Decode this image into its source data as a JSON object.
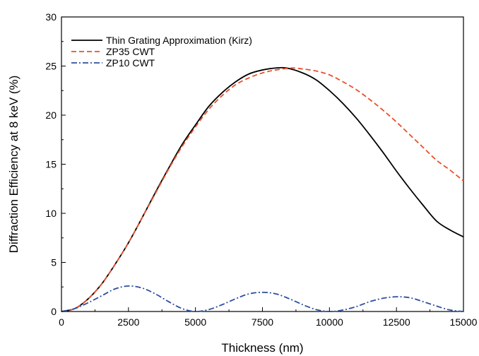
{
  "chart_data": {
    "type": "line",
    "title": "",
    "xlabel": "Thickness (nm)",
    "ylabel": "Diffraction Efficiency at 8 keV (%)",
    "xlim": [
      0,
      15000
    ],
    "ylim": [
      0,
      30
    ],
    "xticks": [
      0,
      2500,
      5000,
      7500,
      10000,
      12500,
      15000
    ],
    "yticks": [
      0,
      5,
      10,
      15,
      20,
      25,
      30
    ],
    "grid": false,
    "legend_position": "top-left",
    "series": [
      {
        "name": "Thin Grating Approximation (Kirz)",
        "color": "#000000",
        "style": "solid",
        "x": [
          0,
          500,
          1000,
          1500,
          2000,
          2500,
          3000,
          3500,
          4000,
          4500,
          5000,
          5500,
          6000,
          6500,
          7000,
          7500,
          8000,
          8400,
          9000,
          9500,
          10000,
          10500,
          11000,
          11500,
          12000,
          12500,
          13000,
          13500,
          14000,
          14500,
          15000
        ],
        "y": [
          0,
          0.3,
          1.3,
          2.8,
          4.8,
          7.0,
          9.5,
          12.1,
          14.6,
          17.0,
          19.0,
          20.9,
          22.3,
          23.4,
          24.2,
          24.6,
          24.8,
          24.8,
          24.3,
          23.6,
          22.5,
          21.2,
          19.7,
          18.0,
          16.2,
          14.3,
          12.5,
          10.8,
          9.2,
          8.3,
          7.6
        ]
      },
      {
        "name": "ZP35 CWT",
        "color": "#e8502a",
        "style": "dashed",
        "x": [
          0,
          500,
          1000,
          1500,
          2000,
          2500,
          3000,
          3500,
          4000,
          4500,
          5000,
          5500,
          6000,
          6500,
          7000,
          7500,
          8000,
          8600,
          9000,
          9500,
          10000,
          10500,
          11000,
          11500,
          12000,
          12500,
          13000,
          13500,
          14000,
          14500,
          15000
        ],
        "y": [
          0,
          0.3,
          1.3,
          2.8,
          4.8,
          7.0,
          9.5,
          12.0,
          14.5,
          16.8,
          18.8,
          20.6,
          22.0,
          23.1,
          23.8,
          24.3,
          24.6,
          24.8,
          24.7,
          24.5,
          24.1,
          23.4,
          22.6,
          21.6,
          20.5,
          19.3,
          18.0,
          16.7,
          15.4,
          14.4,
          13.3
        ]
      },
      {
        "name": "ZP10 CWT",
        "color": "#2e4f9e",
        "style": "dashdot",
        "x": [
          0,
          500,
          1000,
          1500,
          2000,
          2500,
          3000,
          3500,
          4000,
          4500,
          5000,
          5500,
          6000,
          6500,
          7000,
          7500,
          8000,
          8500,
          9000,
          9500,
          10000,
          10500,
          11000,
          11500,
          12000,
          12500,
          13000,
          13500,
          14000,
          14500,
          15000
        ],
        "y": [
          0,
          0.3,
          0.9,
          1.6,
          2.3,
          2.6,
          2.4,
          1.8,
          1.0,
          0.3,
          0,
          0.2,
          0.7,
          1.3,
          1.8,
          1.95,
          1.8,
          1.3,
          0.7,
          0.2,
          0,
          0.15,
          0.5,
          1.0,
          1.35,
          1.5,
          1.4,
          1.0,
          0.55,
          0.15,
          0
        ]
      }
    ]
  }
}
